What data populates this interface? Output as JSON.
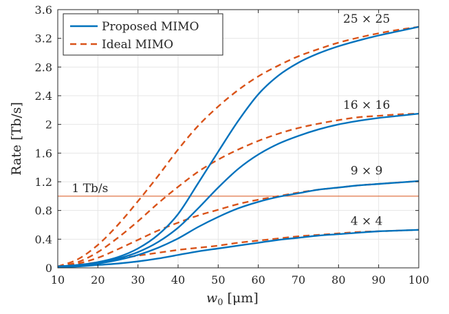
{
  "chart_data": {
    "type": "line",
    "xlabel": "w",
    "xlabel_sub": "0",
    "xlabel_unit": "[μm]",
    "ylabel": "Rate [Tb/s]",
    "xlim": [
      10,
      100
    ],
    "ylim": [
      0,
      3.6
    ],
    "xticks": [
      "10",
      "20",
      "30",
      "40",
      "50",
      "60",
      "70",
      "80",
      "90",
      "100"
    ],
    "yticks": [
      "0",
      "0.4",
      "0.8",
      "1.2",
      "1.6",
      "2",
      "2.4",
      "2.8",
      "3.2",
      "3.6"
    ],
    "grid": true,
    "legend_position": "top-left",
    "colors": {
      "proposed": "#0072BD",
      "ideal": "#D95319",
      "reference": "#D95319"
    },
    "legend": [
      "Proposed MIMO",
      "Ideal MIMO"
    ],
    "reference_line": {
      "y": 1.0,
      "label": "1 Tb/s"
    },
    "annotations": [
      {
        "text": "25 × 25",
        "x": 87,
        "y": 3.42
      },
      {
        "text": "16 × 16",
        "x": 87,
        "y": 2.22
      },
      {
        "text": "9 × 9",
        "x": 87,
        "y": 1.3
      },
      {
        "text": "4 × 4",
        "x": 87,
        "y": 0.6
      }
    ],
    "x": [
      10,
      15,
      20,
      25,
      30,
      35,
      40,
      45,
      50,
      55,
      60,
      65,
      70,
      75,
      80,
      85,
      90,
      95,
      100
    ],
    "series": [
      {
        "group": "25 × 25",
        "style": "proposed",
        "values": [
          0.02,
          0.04,
          0.08,
          0.15,
          0.27,
          0.46,
          0.75,
          1.18,
          1.62,
          2.05,
          2.42,
          2.68,
          2.86,
          2.99,
          3.09,
          3.17,
          3.24,
          3.3,
          3.36
        ]
      },
      {
        "group": "25 × 25",
        "style": "ideal",
        "values": [
          0.02,
          0.12,
          0.32,
          0.6,
          0.93,
          1.28,
          1.65,
          1.98,
          2.25,
          2.48,
          2.67,
          2.82,
          2.95,
          3.05,
          3.14,
          3.21,
          3.27,
          3.32,
          3.36
        ]
      },
      {
        "group": "16 × 16",
        "style": "proposed",
        "values": [
          0.02,
          0.04,
          0.07,
          0.13,
          0.22,
          0.36,
          0.56,
          0.83,
          1.12,
          1.38,
          1.58,
          1.73,
          1.84,
          1.93,
          2.0,
          2.05,
          2.09,
          2.12,
          2.15
        ]
      },
      {
        "group": "16 × 16",
        "style": "ideal",
        "values": [
          0.02,
          0.08,
          0.22,
          0.42,
          0.65,
          0.9,
          1.13,
          1.34,
          1.51,
          1.65,
          1.77,
          1.87,
          1.95,
          2.01,
          2.06,
          2.1,
          2.12,
          2.14,
          2.15
        ]
      },
      {
        "group": "9 × 9",
        "style": "proposed",
        "values": [
          0.02,
          0.03,
          0.06,
          0.11,
          0.18,
          0.28,
          0.41,
          0.57,
          0.71,
          0.83,
          0.92,
          0.99,
          1.04,
          1.09,
          1.12,
          1.15,
          1.17,
          1.19,
          1.21
        ]
      },
      {
        "group": "9 × 9",
        "style": "ideal",
        "values": [
          0.02,
          0.06,
          0.14,
          0.26,
          0.39,
          0.52,
          0.63,
          0.73,
          0.81,
          0.89,
          0.95,
          1.0,
          1.05,
          1.09,
          1.12,
          1.15,
          1.17,
          1.19,
          1.21
        ]
      },
      {
        "group": "4 × 4",
        "style": "proposed",
        "values": [
          0.01,
          0.02,
          0.04,
          0.06,
          0.09,
          0.13,
          0.18,
          0.23,
          0.27,
          0.31,
          0.35,
          0.39,
          0.42,
          0.45,
          0.47,
          0.49,
          0.51,
          0.52,
          0.53
        ]
      },
      {
        "group": "4 × 4",
        "style": "ideal",
        "values": [
          0.01,
          0.04,
          0.08,
          0.13,
          0.17,
          0.21,
          0.25,
          0.28,
          0.31,
          0.35,
          0.38,
          0.41,
          0.44,
          0.46,
          0.48,
          0.5,
          0.51,
          0.52,
          0.53
        ]
      }
    ]
  }
}
